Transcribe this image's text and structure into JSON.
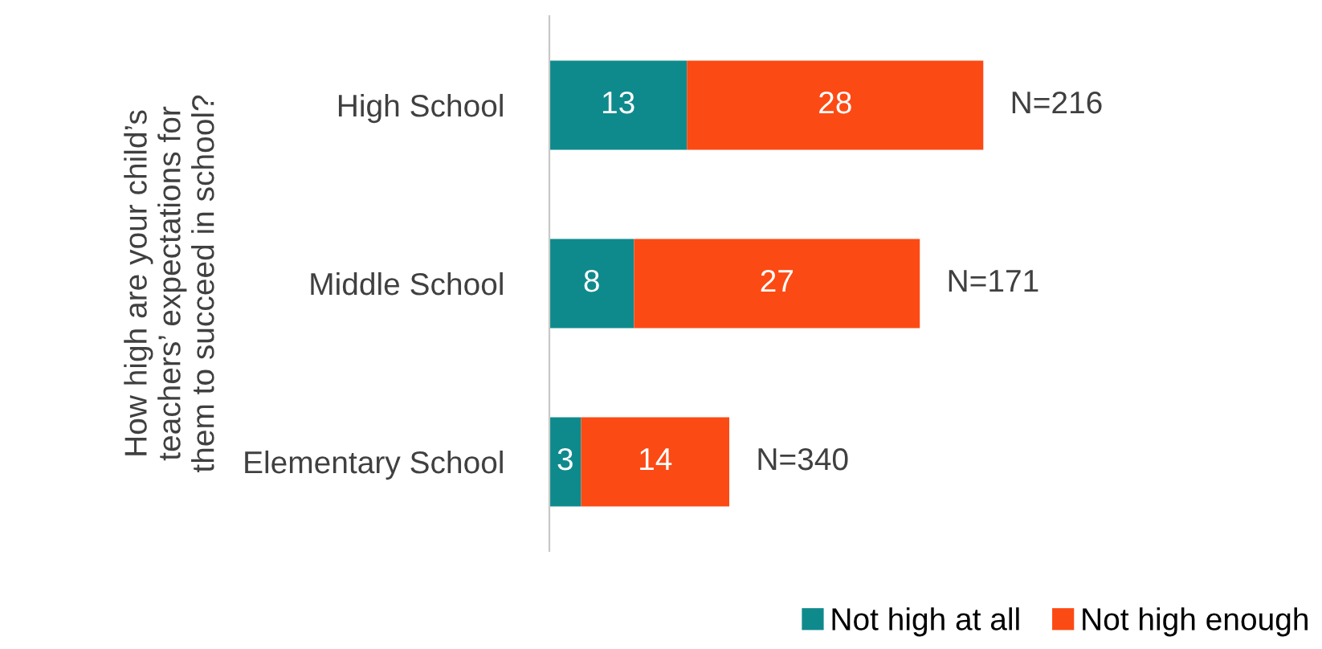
{
  "chart_data": {
    "type": "bar",
    "orientation": "horizontal",
    "stacked": true,
    "data_labels": true,
    "ylabel": "How high are your child’s\nteachers’ expectations for\nthem to succeed in school?",
    "categories": [
      "High School",
      "Middle School",
      "Elementary School"
    ],
    "series": [
      {
        "name": "Not high at all",
        "color": "#0f8a8c",
        "values": [
          13,
          8,
          3
        ]
      },
      {
        "name": "Not high enough",
        "color": "#fc4a14",
        "values": [
          28,
          27,
          14
        ]
      }
    ],
    "annotations": [
      {
        "text": "N=216",
        "x": 41,
        "y": "High School"
      },
      {
        "text": "N=171",
        "x": 35,
        "y": "Middle School"
      },
      {
        "text": "N=340",
        "x": 17,
        "y": "Elementary School"
      }
    ],
    "legend": "bottom right",
    "grid": false
  }
}
